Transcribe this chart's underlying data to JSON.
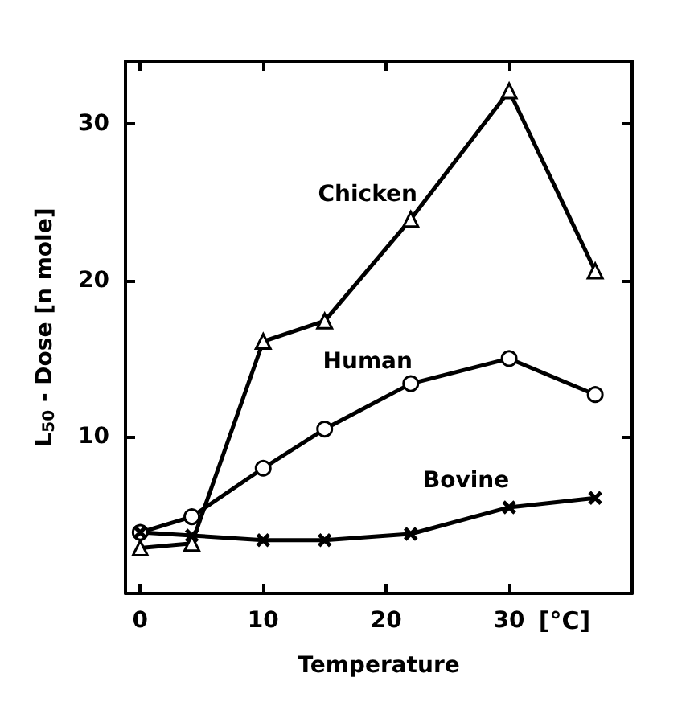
{
  "chart_data": {
    "type": "line",
    "xlabel": "Temperature",
    "ylabel": "L$_{50}$ - Dose [n mole]",
    "annotations": [
      "[°C]"
    ],
    "xlim": [
      -1.2,
      40
    ],
    "xticks": [
      0,
      10,
      20,
      30
    ],
    "ylim": [
      0,
      34
    ],
    "yticks": [
      10,
      20,
      30
    ],
    "grid": false,
    "legend": false,
    "line_style": "solid",
    "series": [
      {
        "name": "Chicken",
        "color": "#000000",
        "marker": "triangle",
        "x": [
          0,
          4.2,
          10,
          15,
          22,
          30,
          37
        ],
        "values": [
          2.9,
          3.2,
          16.1,
          17.4,
          23.9,
          32.1,
          20.6
        ]
      },
      {
        "name": "Human",
        "color": "#000000",
        "marker": "circle",
        "x": [
          0,
          4.2,
          10,
          15,
          22,
          30,
          37
        ],
        "values": [
          3.9,
          4.9,
          8.0,
          10.5,
          13.4,
          15.0,
          12.7
        ]
      },
      {
        "name": "Bovine",
        "color": "#000000",
        "marker": "cross",
        "x": [
          0,
          4.2,
          10,
          15,
          22,
          30,
          37
        ],
        "values": [
          3.9,
          3.7,
          3.4,
          3.4,
          3.8,
          5.5,
          6.1
        ]
      }
    ]
  }
}
